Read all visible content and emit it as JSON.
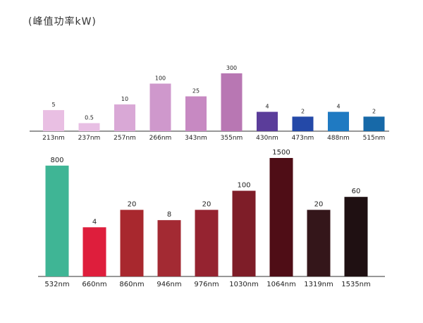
{
  "title": "(峰值功率kW)",
  "chart_data": [
    {
      "type": "bar",
      "title": "",
      "ylabel": "峰值功率kW",
      "categories": [
        "213nm",
        "237nm",
        "257nm",
        "266nm",
        "343nm",
        "355nm",
        "430nm",
        "473nm",
        "488nm",
        "515nm"
      ],
      "values": [
        5,
        0.5,
        10,
        100,
        25,
        300,
        4,
        2,
        4,
        2
      ],
      "value_labels": [
        "5",
        "0.5",
        "10",
        "100",
        "25",
        "300",
        "4",
        "2",
        "4",
        "2"
      ],
      "colors": [
        "#e9bfe3",
        "#e8bfe4",
        "#d9a8d6",
        "#cf98cc",
        "#c789c2",
        "#b877b3",
        "#5b3d9a",
        "#2449a8",
        "#1f7ac2",
        "#1769a8"
      ]
    },
    {
      "type": "bar",
      "title": "",
      "ylabel": "峰值功率kW",
      "categories": [
        "532nm",
        "660nm",
        "860nm",
        "946nm",
        "976nm",
        "1030nm",
        "1064nm",
        "1319nm",
        "1535nm"
      ],
      "values": [
        800,
        4,
        20,
        8,
        20,
        100,
        1500,
        20,
        60
      ],
      "value_labels": [
        "800",
        "4",
        "20",
        "8",
        "20",
        "100",
        "1500",
        "20",
        "60"
      ],
      "colors": [
        "#3fb595",
        "#de1e3c",
        "#a8282e",
        "#a32a33",
        "#952330",
        "#7e1d28",
        "#4f0d16",
        "#34161a",
        "#1f1012"
      ]
    }
  ]
}
